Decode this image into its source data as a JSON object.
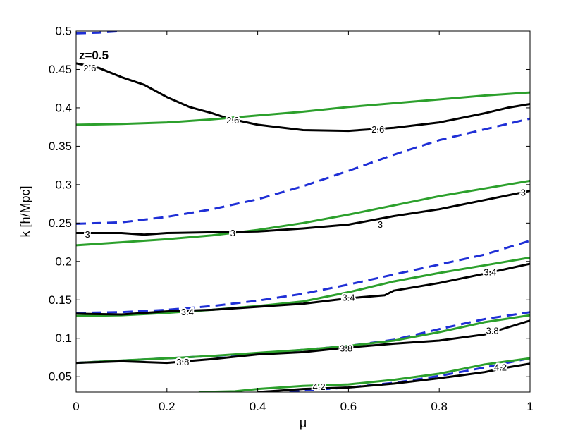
{
  "chart_data": {
    "type": "line",
    "xlabel": "μ",
    "ylabel": "k [h/Mpc]",
    "annotation": "z=0.5",
    "xlim": [
      0,
      1
    ],
    "ylim": [
      0.03,
      0.5
    ],
    "xticks": [
      "0",
      "0.2",
      "0.4",
      "0.6",
      "0.8",
      "1"
    ],
    "yticks": [
      "0.05",
      "0.1",
      "0.15",
      "0.2",
      "0.25",
      "0.3",
      "0.35",
      "0.4",
      "0.45",
      "0.5"
    ],
    "xtick_values": [
      0,
      0.2,
      0.4,
      0.6,
      0.8,
      1
    ],
    "ytick_values": [
      0.05,
      0.1,
      0.15,
      0.2,
      0.25,
      0.3,
      0.35,
      0.4,
      0.45,
      0.5
    ],
    "grid": false,
    "colors": {
      "black": "#000000",
      "green": "#2ca02c",
      "blue": "#1f2fd6"
    },
    "series": [
      {
        "style": "black-solid",
        "points": [
          [
            0,
            0.458
          ],
          [
            0.05,
            0.452
          ],
          [
            0.1,
            0.44
          ],
          [
            0.15,
            0.43
          ],
          [
            0.2,
            0.414
          ],
          [
            0.25,
            0.401
          ],
          [
            0.3,
            0.393
          ],
          [
            0.33,
            0.387
          ],
          [
            0.4,
            0.378
          ],
          [
            0.5,
            0.371
          ],
          [
            0.6,
            0.37
          ],
          [
            0.65,
            0.372
          ],
          [
            0.7,
            0.374
          ],
          [
            0.8,
            0.381
          ],
          [
            0.9,
            0.393
          ],
          [
            0.95,
            0.4
          ],
          [
            1,
            0.405
          ]
        ]
      },
      {
        "style": "green-solid",
        "points": [
          [
            0,
            0.378
          ],
          [
            0.1,
            0.379
          ],
          [
            0.2,
            0.381
          ],
          [
            0.3,
            0.385
          ],
          [
            0.4,
            0.39
          ],
          [
            0.5,
            0.395
          ],
          [
            0.6,
            0.401
          ],
          [
            0.7,
            0.406
          ],
          [
            0.8,
            0.411
          ],
          [
            0.9,
            0.416
          ],
          [
            1,
            0.42
          ]
        ]
      },
      {
        "style": "blue-dashed",
        "points": [
          [
            0,
            0.497
          ],
          [
            0.05,
            0.498
          ],
          [
            0.1,
            0.5
          ]
        ]
      },
      {
        "style": "blue-dashed",
        "points": [
          [
            0,
            0.249
          ],
          [
            0.1,
            0.251
          ],
          [
            0.2,
            0.258
          ],
          [
            0.3,
            0.268
          ],
          [
            0.4,
            0.281
          ],
          [
            0.5,
            0.298
          ],
          [
            0.6,
            0.318
          ],
          [
            0.7,
            0.339
          ],
          [
            0.8,
            0.358
          ],
          [
            0.9,
            0.372
          ],
          [
            1,
            0.386
          ]
        ]
      },
      {
        "style": "green-solid",
        "points": [
          [
            0,
            0.221
          ],
          [
            0.1,
            0.225
          ],
          [
            0.2,
            0.229
          ],
          [
            0.3,
            0.234
          ],
          [
            0.4,
            0.241
          ],
          [
            0.5,
            0.25
          ],
          [
            0.6,
            0.261
          ],
          [
            0.7,
            0.273
          ],
          [
            0.8,
            0.285
          ],
          [
            0.9,
            0.295
          ],
          [
            1,
            0.305
          ]
        ]
      },
      {
        "style": "black-solid",
        "points": [
          [
            0,
            0.237
          ],
          [
            0.1,
            0.237
          ],
          [
            0.15,
            0.235
          ],
          [
            0.2,
            0.237
          ],
          [
            0.3,
            0.238
          ],
          [
            0.4,
            0.239
          ],
          [
            0.5,
            0.243
          ],
          [
            0.6,
            0.248
          ],
          [
            0.7,
            0.259
          ],
          [
            0.8,
            0.268
          ],
          [
            0.9,
            0.28
          ],
          [
            1,
            0.292
          ]
        ]
      },
      {
        "style": "blue-dashed",
        "points": [
          [
            0,
            0.133
          ],
          [
            0.1,
            0.134
          ],
          [
            0.2,
            0.137
          ],
          [
            0.3,
            0.142
          ],
          [
            0.4,
            0.149
          ],
          [
            0.5,
            0.158
          ],
          [
            0.6,
            0.17
          ],
          [
            0.7,
            0.183
          ],
          [
            0.8,
            0.196
          ],
          [
            0.9,
            0.209
          ],
          [
            1,
            0.227
          ]
        ]
      },
      {
        "style": "green-solid",
        "points": [
          [
            0,
            0.129
          ],
          [
            0.1,
            0.13
          ],
          [
            0.2,
            0.133
          ],
          [
            0.3,
            0.137
          ],
          [
            0.4,
            0.142
          ],
          [
            0.5,
            0.148
          ],
          [
            0.6,
            0.16
          ],
          [
            0.7,
            0.174
          ],
          [
            0.8,
            0.185
          ],
          [
            0.9,
            0.195
          ],
          [
            1,
            0.205
          ]
        ]
      },
      {
        "style": "black-solid",
        "points": [
          [
            0,
            0.132
          ],
          [
            0.1,
            0.131
          ],
          [
            0.2,
            0.135
          ],
          [
            0.3,
            0.137
          ],
          [
            0.4,
            0.141
          ],
          [
            0.5,
            0.145
          ],
          [
            0.6,
            0.152
          ],
          [
            0.68,
            0.156
          ],
          [
            0.7,
            0.162
          ],
          [
            0.8,
            0.172
          ],
          [
            0.9,
            0.184
          ],
          [
            1,
            0.197
          ]
        ]
      },
      {
        "style": "blue-dashed",
        "points": [
          [
            0,
            0.068
          ],
          [
            0.1,
            0.071
          ],
          [
            0.2,
            0.074
          ],
          [
            0.3,
            0.077
          ],
          [
            0.4,
            0.08
          ],
          [
            0.5,
            0.085
          ],
          [
            0.6,
            0.09
          ],
          [
            0.7,
            0.098
          ],
          [
            0.8,
            0.112
          ],
          [
            0.9,
            0.125
          ],
          [
            1,
            0.134
          ]
        ]
      },
      {
        "style": "green-solid",
        "points": [
          [
            0,
            0.068
          ],
          [
            0.1,
            0.071
          ],
          [
            0.2,
            0.074
          ],
          [
            0.3,
            0.077
          ],
          [
            0.4,
            0.081
          ],
          [
            0.5,
            0.085
          ],
          [
            0.6,
            0.09
          ],
          [
            0.7,
            0.097
          ],
          [
            0.8,
            0.108
          ],
          [
            0.9,
            0.121
          ],
          [
            1,
            0.13
          ]
        ]
      },
      {
        "style": "black-solid",
        "points": [
          [
            0,
            0.068
          ],
          [
            0.1,
            0.07
          ],
          [
            0.2,
            0.068
          ],
          [
            0.3,
            0.073
          ],
          [
            0.4,
            0.079
          ],
          [
            0.5,
            0.082
          ],
          [
            0.6,
            0.088
          ],
          [
            0.7,
            0.093
          ],
          [
            0.8,
            0.097
          ],
          [
            0.9,
            0.105
          ],
          [
            0.95,
            0.114
          ],
          [
            1,
            0.123
          ]
        ]
      },
      {
        "style": "blue-dashed",
        "points": [
          [
            0.47,
            0.03
          ],
          [
            0.5,
            0.032
          ],
          [
            0.6,
            0.036
          ],
          [
            0.7,
            0.042
          ],
          [
            0.8,
            0.051
          ],
          [
            0.9,
            0.062
          ],
          [
            1,
            0.074
          ]
        ]
      },
      {
        "style": "green-solid",
        "points": [
          [
            0.27,
            0.03
          ],
          [
            0.35,
            0.031
          ],
          [
            0.4,
            0.034
          ],
          [
            0.5,
            0.038
          ],
          [
            0.6,
            0.04
          ],
          [
            0.7,
            0.046
          ],
          [
            0.8,
            0.054
          ],
          [
            0.9,
            0.066
          ],
          [
            1,
            0.074
          ]
        ]
      },
      {
        "style": "black-solid",
        "points": [
          [
            0.4,
            0.03
          ],
          [
            0.5,
            0.034
          ],
          [
            0.6,
            0.036
          ],
          [
            0.7,
            0.041
          ],
          [
            0.8,
            0.048
          ],
          [
            0.9,
            0.056
          ],
          [
            0.95,
            0.062
          ],
          [
            1,
            0.067
          ]
        ]
      }
    ],
    "contour_labels": [
      {
        "text": "2.6",
        "x": 0.03,
        "y": 0.452
      },
      {
        "text": "2.6",
        "x": 0.345,
        "y": 0.384
      },
      {
        "text": "2.6",
        "x": 0.665,
        "y": 0.372
      },
      {
        "text": "3",
        "x": 0.025,
        "y": 0.235
      },
      {
        "text": "3",
        "x": 0.345,
        "y": 0.237
      },
      {
        "text": "3",
        "x": 0.67,
        "y": 0.248
      },
      {
        "text": "3",
        "x": 0.985,
        "y": 0.29
      },
      {
        "text": "3.4",
        "x": 0.245,
        "y": 0.134
      },
      {
        "text": "3.4",
        "x": 0.6,
        "y": 0.153
      },
      {
        "text": "3.4",
        "x": 0.912,
        "y": 0.186
      },
      {
        "text": "3.8",
        "x": 0.235,
        "y": 0.069
      },
      {
        "text": "3.8",
        "x": 0.595,
        "y": 0.087
      },
      {
        "text": "3.8",
        "x": 0.917,
        "y": 0.11
      },
      {
        "text": "4.2",
        "x": 0.535,
        "y": 0.037
      },
      {
        "text": "4.2",
        "x": 0.935,
        "y": 0.062
      }
    ]
  }
}
